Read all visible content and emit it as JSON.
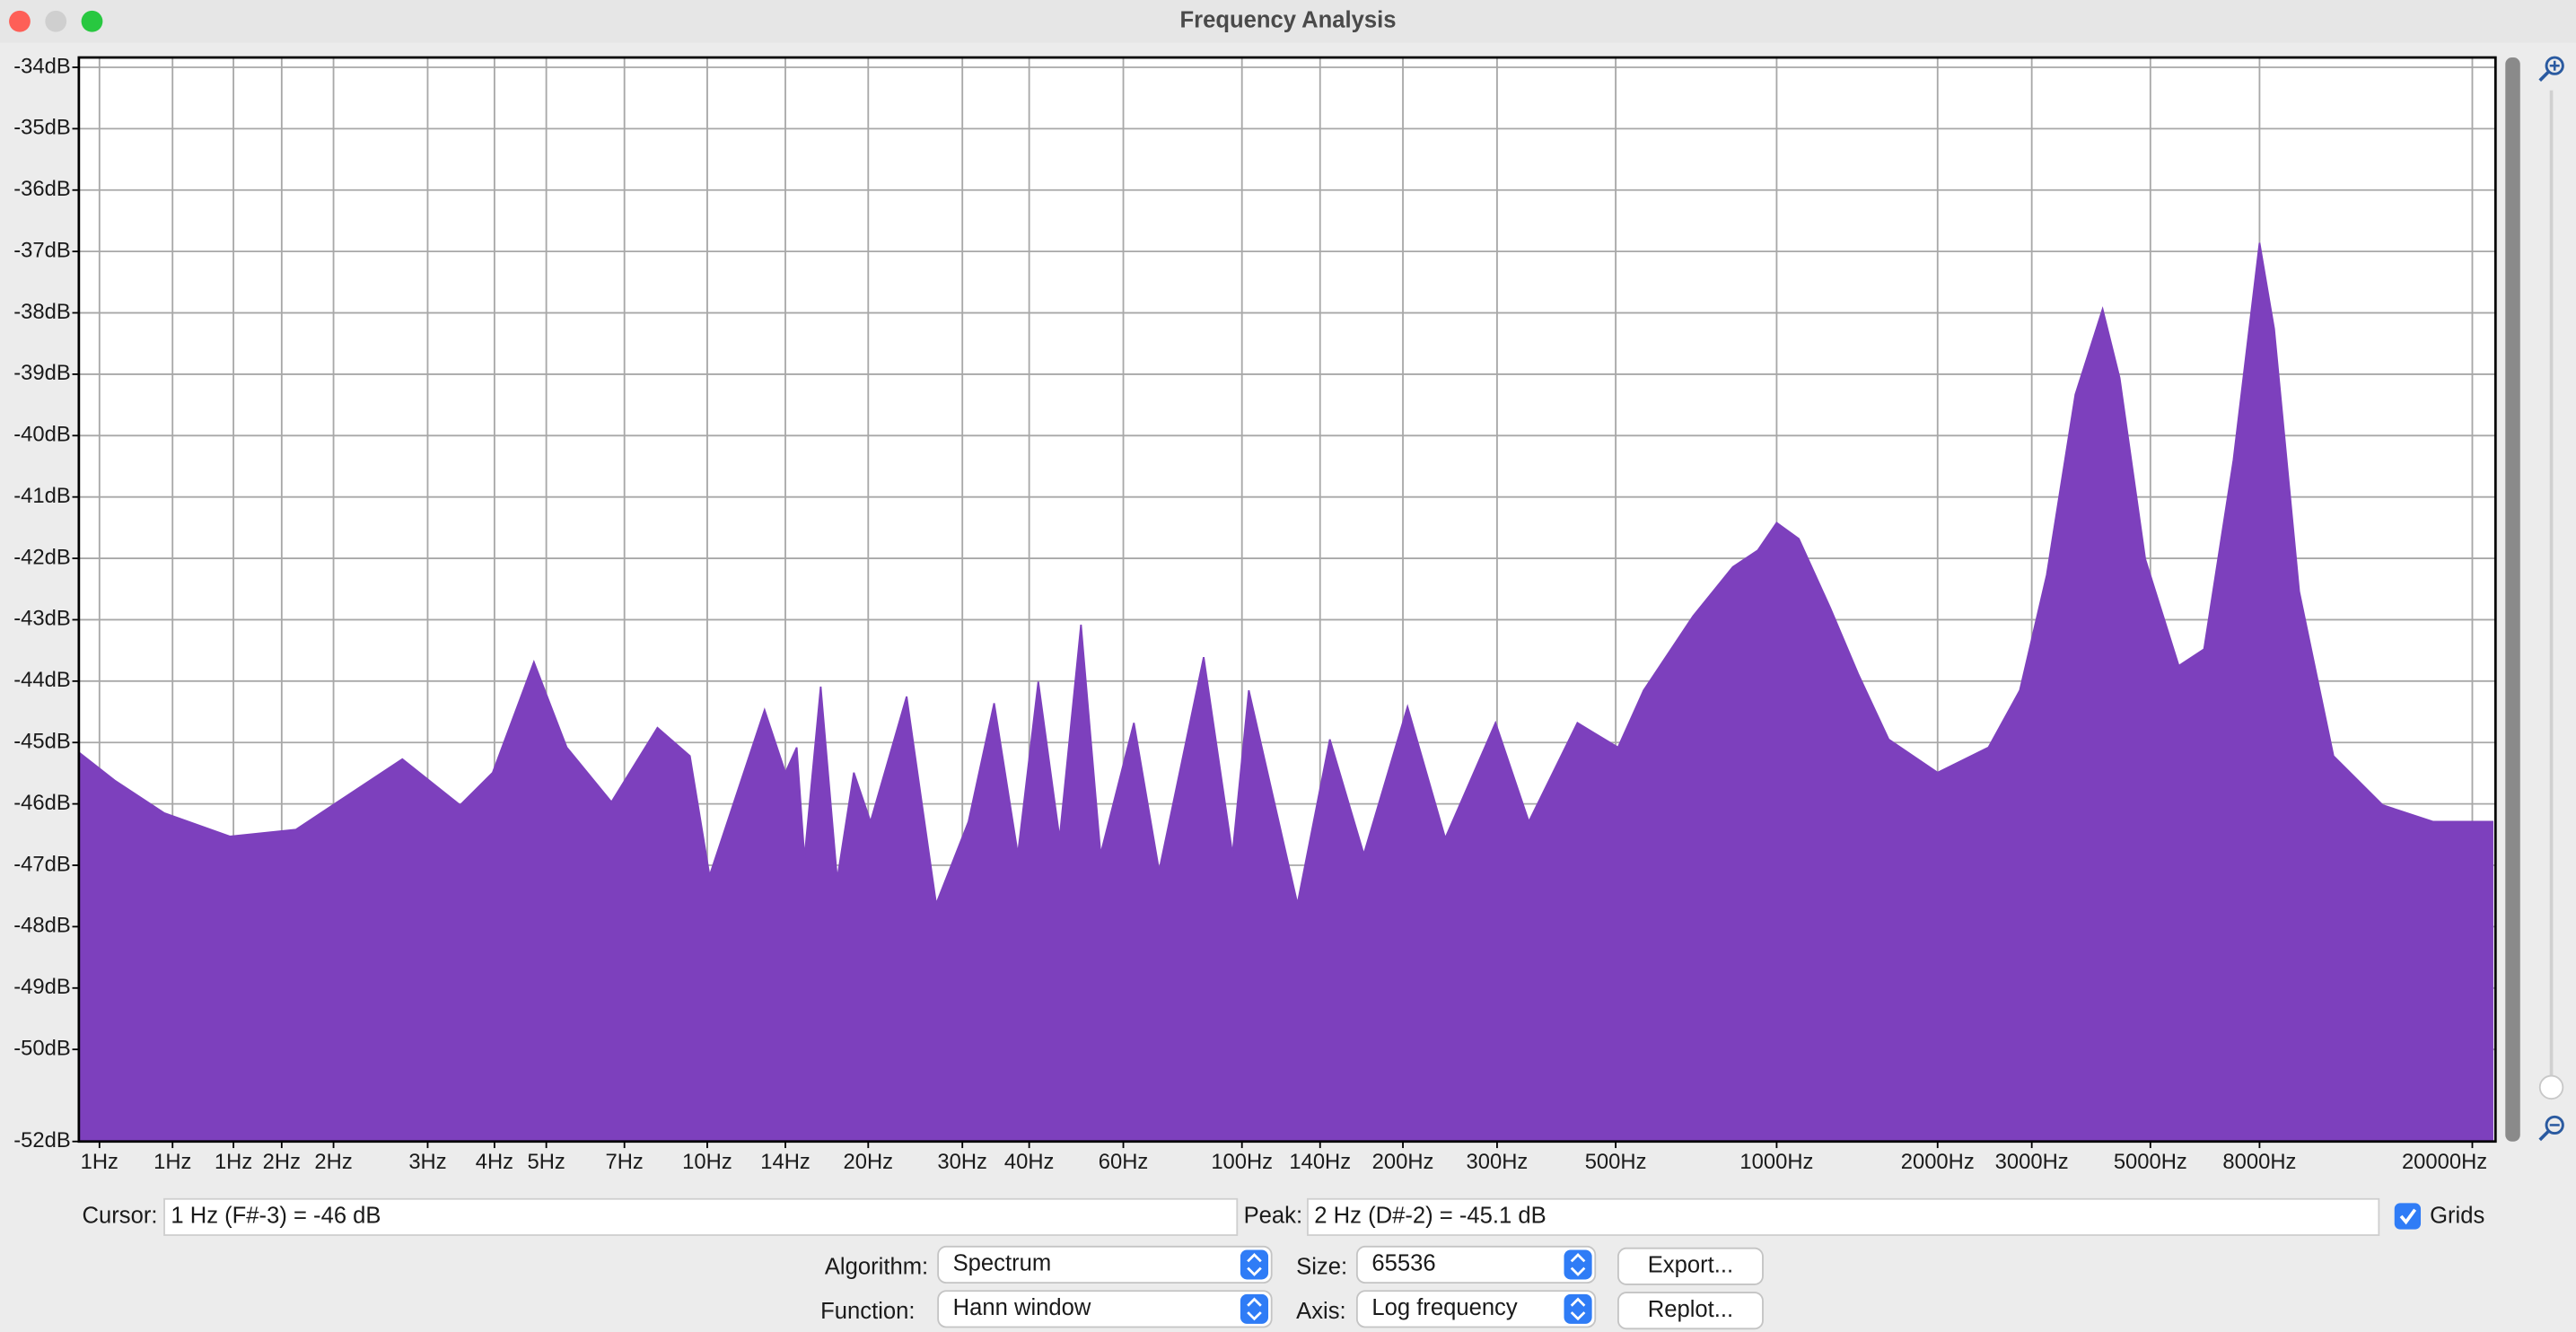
{
  "window": {
    "title": "Frequency Analysis"
  },
  "chart_data": {
    "type": "area",
    "xscale": "log",
    "grid": true,
    "color": "#7d40bd",
    "x": [
      0.668,
      0.78,
      0.965,
      1.28,
      1.7,
      2.1,
      2.69,
      3.45,
      3.97,
      4.74,
      5.46,
      6.62,
      8.07,
      9.28,
      10.1,
      12.8,
      14,
      14.7,
      15.2,
      16.3,
      17.5,
      18.8,
      20.2,
      23.6,
      26.8,
      30.8,
      34.4,
      38.1,
      41.6,
      45.6,
      50,
      54.4,
      62.8,
      70,
      84.8,
      96,
      103,
      127,
      146,
      169,
      204,
      240,
      298,
      344,
      424,
      505,
      564,
      698,
      828,
      922,
      1000,
      1100,
      1260,
      1420,
      1620,
      2000,
      2490,
      2850,
      3200,
      3620,
      4070,
      4380,
      4890,
      5650,
      6300,
      7150,
      8000,
      8520,
      9490,
      11000,
      13600,
      16900,
      21900
    ],
    "values": [
      -45.16,
      -45.62,
      -46.15,
      -46.53,
      -46.42,
      -45.89,
      -45.27,
      -46.02,
      -45.49,
      -43.69,
      -45.08,
      -45.97,
      -44.76,
      -45.22,
      -47.17,
      -44.47,
      -45.49,
      -45.08,
      -46.88,
      -44.09,
      -47.23,
      -45.49,
      -46.29,
      -44.25,
      -47.63,
      -46.29,
      -44.36,
      -46.82,
      -44.01,
      -46.56,
      -43.08,
      -46.82,
      -44.68,
      -47.09,
      -43.61,
      -46.82,
      -44.15,
      -47.63,
      -44.95,
      -46.82,
      -44.42,
      -46.56,
      -44.68,
      -46.29,
      -44.68,
      -45.08,
      -44.15,
      -42.94,
      -42.14,
      -41.87,
      -41.42,
      -41.68,
      -42.81,
      -43.88,
      -44.95,
      -45.49,
      -45.08,
      -44.15,
      -42.27,
      -39.33,
      -37.94,
      -39.06,
      -42.01,
      -43.75,
      -43.48,
      -40.4,
      -36.86,
      -38.26,
      -42.54,
      -45.22,
      -46.02,
      -46.29,
      -46.29
    ],
    "xlim": [
      0.668,
      22100
    ],
    "ylim": [
      -51.5,
      -33.84
    ],
    "yticks": [
      {
        "value": -34,
        "label": "-34dB"
      },
      {
        "value": -35,
        "label": "-35dB"
      },
      {
        "value": -36,
        "label": "-36dB"
      },
      {
        "value": -37,
        "label": "-37dB"
      },
      {
        "value": -38,
        "label": "-38dB"
      },
      {
        "value": -39,
        "label": "-39dB"
      },
      {
        "value": -40,
        "label": "-40dB"
      },
      {
        "value": -41,
        "label": "-41dB"
      },
      {
        "value": -42,
        "label": "-42dB"
      },
      {
        "value": -43,
        "label": "-43dB"
      },
      {
        "value": -44,
        "label": "-44dB"
      },
      {
        "value": -45,
        "label": "-45dB"
      },
      {
        "value": -46,
        "label": "-46dB"
      },
      {
        "value": -47,
        "label": "-47dB"
      },
      {
        "value": -48,
        "label": "-48dB"
      },
      {
        "value": -49,
        "label": "-49dB"
      },
      {
        "value": -50,
        "label": "-50dB"
      },
      {
        "value": -51.5,
        "label": "-52dB"
      }
    ],
    "xticks": [
      {
        "value": 0.73,
        "label": "1Hz"
      },
      {
        "value": 1,
        "label": "1Hz"
      },
      {
        "value": 1.3,
        "label": "1Hz"
      },
      {
        "value": 1.6,
        "label": "2Hz"
      },
      {
        "value": 2,
        "label": "2Hz"
      },
      {
        "value": 3,
        "label": "3Hz"
      },
      {
        "value": 4,
        "label": "4Hz"
      },
      {
        "value": 5,
        "label": "5Hz"
      },
      {
        "value": 7,
        "label": "7Hz"
      },
      {
        "value": 10,
        "label": "10Hz"
      },
      {
        "value": 14,
        "label": "14Hz"
      },
      {
        "value": 20,
        "label": "20Hz"
      },
      {
        "value": 30,
        "label": "30Hz"
      },
      {
        "value": 40,
        "label": "40Hz"
      },
      {
        "value": 60,
        "label": "60Hz"
      },
      {
        "value": 100,
        "label": "100Hz"
      },
      {
        "value": 140,
        "label": "140Hz"
      },
      {
        "value": 200,
        "label": "200Hz"
      },
      {
        "value": 300,
        "label": "300Hz"
      },
      {
        "value": 500,
        "label": "500Hz"
      },
      {
        "value": 1000,
        "label": "1000Hz"
      },
      {
        "value": 2000,
        "label": "2000Hz"
      },
      {
        "value": 3000,
        "label": "3000Hz"
      },
      {
        "value": 5000,
        "label": "5000Hz"
      },
      {
        "value": 8000,
        "label": "8000Hz"
      },
      {
        "value": 20000,
        "label": "20000Hz"
      }
    ]
  },
  "controls": {
    "cursor_label": "Cursor:",
    "cursor_value": "1 Hz (F#-3) = -46 dB",
    "peak_label": "Peak:",
    "peak_value": "2 Hz (D#-2) = -45.1 dB",
    "grids_label": "Grids",
    "algorithm_label": "Algorithm:",
    "algorithm": "Spectrum",
    "size_label": "Size:",
    "size": "65536",
    "export": "Export...",
    "function_label": "Function:",
    "function": "Hann window",
    "axis_label": "Axis:",
    "axis": "Log frequency",
    "replot": "Replot..."
  }
}
